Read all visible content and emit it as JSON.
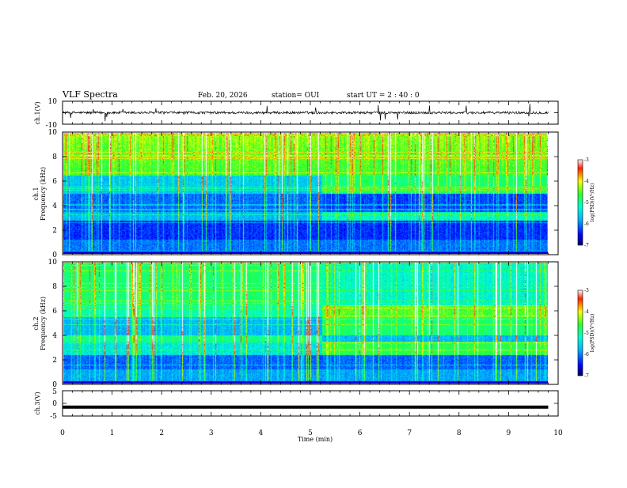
{
  "header": {
    "title": "VLF Spectra",
    "date": "Feb. 20, 2026",
    "station": "station= OUI",
    "start_ut": "start  UT =   2 : 40 : 0"
  },
  "chart_data": [
    {
      "type": "line",
      "id": "ch1-waveform",
      "ylabel": "ch.1(V)",
      "ylim": [
        -10,
        10
      ],
      "yticks": [
        "10",
        "-10"
      ],
      "description": "raw waveform, noisy near 0 V with occasional spikes"
    },
    {
      "type": "heatmap",
      "id": "ch1-spectrogram",
      "ylabel": "ch.1",
      "ylabel2": "Frequency  (kHz)",
      "ylim": [
        0,
        10
      ],
      "yticks": [
        "0",
        "2",
        "4",
        "6",
        "8",
        "10"
      ],
      "x_change_min": 5.2,
      "colorbar": {
        "label": "log(PSD)(V²/Hz)",
        "range": [
          -7,
          -3
        ],
        "ticks": [
          "-3",
          "-4",
          "-5",
          "-6",
          "-7"
        ]
      }
    },
    {
      "type": "heatmap",
      "id": "ch2-spectrogram",
      "ylabel": "ch.2",
      "ylabel2": "Frequency  (kHz)",
      "ylim": [
        0,
        10
      ],
      "yticks": [
        "0",
        "2",
        "4",
        "6",
        "8",
        "10"
      ],
      "x_change_min": 5.2,
      "colorbar": {
        "label": "log(PSD)(V²/Hz)",
        "range": [
          -7,
          -3
        ],
        "ticks": [
          "-3",
          "-4",
          "-5",
          "-6",
          "-7"
        ]
      }
    },
    {
      "type": "line",
      "id": "ch3-waveform",
      "ylabel": "ch.3(V)",
      "ylim": [
        -5,
        5
      ],
      "yticks": [
        "5",
        "0",
        "-5"
      ],
      "constant_value": -1.5
    }
  ],
  "xaxis": {
    "label": "Time  (min)",
    "range": [
      0,
      10
    ],
    "ticks": [
      "0",
      "1",
      "2",
      "3",
      "4",
      "5",
      "6",
      "7",
      "8",
      "9",
      "10"
    ],
    "data_end": 9.8
  }
}
